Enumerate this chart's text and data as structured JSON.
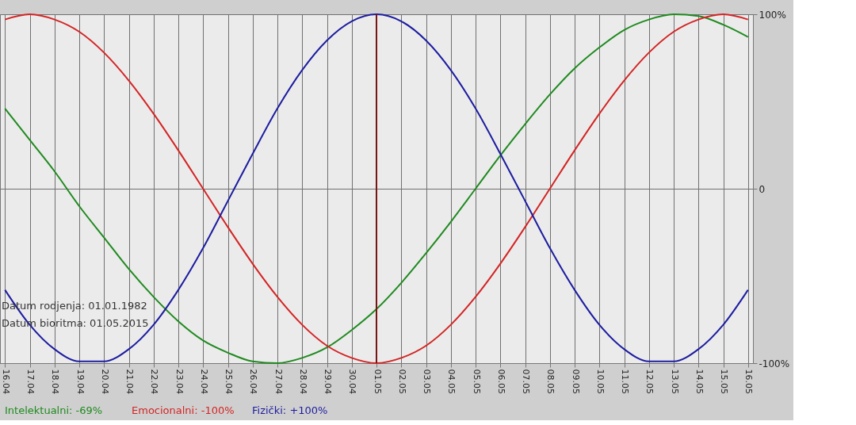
{
  "chart_data": {
    "type": "line",
    "categories": [
      "16.04",
      "17.04",
      "18.04",
      "19.04",
      "20.04",
      "21.04",
      "22.04",
      "23.04",
      "24.04",
      "25.04",
      "26.04",
      "27.04",
      "28.04",
      "29.04",
      "30.04",
      "01.05",
      "02.05",
      "03.05",
      "04.05",
      "05.05",
      "06.05",
      "07.05",
      "08.05",
      "09.05",
      "10.05",
      "11.05",
      "12.05",
      "13.05",
      "14.05",
      "15.05",
      "16.05"
    ],
    "series": [
      {
        "name": "Intelektualni: -69%",
        "color": "#1f8a1f",
        "values": [
          46,
          28,
          10,
          -10,
          -28,
          -46,
          -62,
          -76,
          -87,
          -94,
          -99,
          -100,
          -97,
          -91,
          -81,
          -69,
          -54,
          -37,
          -19,
          0,
          19,
          37,
          54,
          69,
          81,
          91,
          97,
          100,
          99,
          94,
          87
        ]
      },
      {
        "name": "Emocionalni: -100%",
        "color": "#d42424",
        "values": [
          97,
          100,
          97,
          90,
          78,
          62,
          43,
          22,
          0,
          -22,
          -43,
          -62,
          -78,
          -90,
          -97,
          -100,
          -97,
          -90,
          -78,
          -62,
          -43,
          -22,
          0,
          22,
          43,
          62,
          78,
          90,
          97,
          100,
          97
        ]
      },
      {
        "name": "Fizički: +100%",
        "color": "#1c1ca0",
        "values": [
          -58,
          -78,
          -92,
          -99,
          -99,
          -92,
          -78,
          -58,
          -34,
          -7,
          20,
          46,
          68,
          85,
          96,
          100,
          96,
          85,
          68,
          46,
          20,
          -7,
          -34,
          -58,
          -78,
          -92,
          -99,
          -99,
          -92,
          -78,
          -58
        ]
      }
    ],
    "ylim": [
      -100,
      100
    ],
    "yticks": [
      {
        "value": -100,
        "label": "-100%"
      },
      0,
      {
        "value": 100,
        "label": "100%"
      }
    ],
    "grid": true,
    "legend": "bottom",
    "ref_lines": [
      {
        "axis": "x",
        "value": "01.05",
        "color": "#7a1515"
      }
    ],
    "annotations": [
      "Datum rodjenja: 01.01.1982",
      "Datum bioritma: 01.05.2015"
    ]
  }
}
